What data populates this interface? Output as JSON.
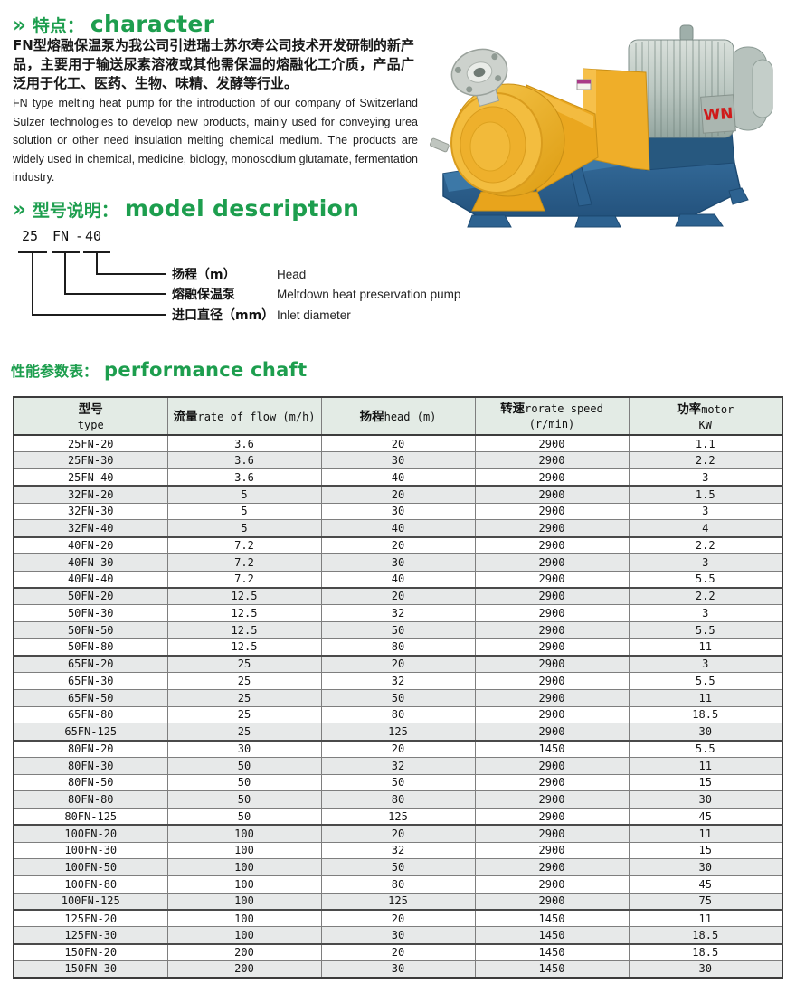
{
  "colors": {
    "heading_green": "#1d9e4e",
    "table_header_bg": "#e3ebe5",
    "stripe_bg": "#e7e9e9",
    "base_blue": "#2d6290",
    "pump_yellow": "#efae29",
    "motor_gray": "#b9c4be",
    "wn_red": "#cf1b1b"
  },
  "character_section": {
    "marker": "»",
    "title_zh": "特点：",
    "title_en": "character",
    "paragraph_zh": "FN型熔融保温泵为我公司引进瑞士苏尔寿公司技术开发研制的新产品，主要用于输送尿素溶液或其他需保温的熔融化工介质，产品广泛用于化工、医药、生物、味精、发酵等行业。",
    "paragraph_en": "FN type melting heat pump for the introduction of our company of Switzerland Sulzer technologies to develop new products, mainly used for conveying urea solution or other need insulation melting chemical medium. The products are widely used in chemical, medicine, biology, monosodium glutamate, fermentation industry."
  },
  "pump_photo": {
    "motor_label": "WN"
  },
  "model_section": {
    "marker": "»",
    "title_zh": "型号说明：",
    "title_en": "model description",
    "code_parts": [
      "25",
      "FN",
      "-",
      "40"
    ],
    "legend": [
      {
        "zh": "扬程（m）",
        "en": "Head"
      },
      {
        "zh": "熔融保温泵",
        "en": "Meltdown heat preservation pump"
      },
      {
        "zh": "进口直径（mm）",
        "en": "Inlet diameter"
      }
    ]
  },
  "performance_section": {
    "title_zh": "性能参数表：",
    "title_en": "performance chaft",
    "table": {
      "headers": [
        {
          "zh": "型号",
          "en": "",
          "line2": "type"
        },
        {
          "zh": "流量",
          "en": "rate of flow (m/h)",
          "line2": ""
        },
        {
          "zh": "扬程",
          "en": "head (m)",
          "line2": ""
        },
        {
          "zh": "转速",
          "en": "rorate speed (r/min)",
          "line2": ""
        },
        {
          "zh": "功率",
          "en": "motor",
          "line2": "KW"
        }
      ],
      "rows": [
        [
          "25FN-20",
          "3.6",
          "20",
          "2900",
          "1.1"
        ],
        [
          "25FN-30",
          "3.6",
          "30",
          "2900",
          "2.2"
        ],
        [
          "25FN-40",
          "3.6",
          "40",
          "2900",
          "3"
        ],
        [
          "32FN-20",
          "5",
          "20",
          "2900",
          "1.5"
        ],
        [
          "32FN-30",
          "5",
          "30",
          "2900",
          "3"
        ],
        [
          "32FN-40",
          "5",
          "40",
          "2900",
          "4"
        ],
        [
          "40FN-20",
          "7.2",
          "20",
          "2900",
          "2.2"
        ],
        [
          "40FN-30",
          "7.2",
          "30",
          "2900",
          "3"
        ],
        [
          "40FN-40",
          "7.2",
          "40",
          "2900",
          "5.5"
        ],
        [
          "50FN-20",
          "12.5",
          "20",
          "2900",
          "2.2"
        ],
        [
          "50FN-30",
          "12.5",
          "32",
          "2900",
          "3"
        ],
        [
          "50FN-50",
          "12.5",
          "50",
          "2900",
          "5.5"
        ],
        [
          "50FN-80",
          "12.5",
          "80",
          "2900",
          "11"
        ],
        [
          "65FN-20",
          "25",
          "20",
          "2900",
          "3"
        ],
        [
          "65FN-30",
          "25",
          "32",
          "2900",
          "5.5"
        ],
        [
          "65FN-50",
          "25",
          "50",
          "2900",
          "11"
        ],
        [
          "65FN-80",
          "25",
          "80",
          "2900",
          "18.5"
        ],
        [
          "65FN-125",
          "25",
          "125",
          "2900",
          "30"
        ],
        [
          "80FN-20",
          "30",
          "20",
          "1450",
          "5.5"
        ],
        [
          "80FN-30",
          "50",
          "32",
          "2900",
          "11"
        ],
        [
          "80FN-50",
          "50",
          "50",
          "2900",
          "15"
        ],
        [
          "80FN-80",
          "50",
          "80",
          "2900",
          "30"
        ],
        [
          "80FN-125",
          "50",
          "125",
          "2900",
          "45"
        ],
        [
          "100FN-20",
          "100",
          "20",
          "2900",
          "11"
        ],
        [
          "100FN-30",
          "100",
          "32",
          "2900",
          "15"
        ],
        [
          "100FN-50",
          "100",
          "50",
          "2900",
          "30"
        ],
        [
          "100FN-80",
          "100",
          "80",
          "2900",
          "45"
        ],
        [
          "100FN-125",
          "100",
          "125",
          "2900",
          "75"
        ],
        [
          "125FN-20",
          "100",
          "20",
          "1450",
          "11"
        ],
        [
          "125FN-30",
          "100",
          "30",
          "1450",
          "18.5"
        ],
        [
          "150FN-20",
          "200",
          "20",
          "1450",
          "18.5"
        ],
        [
          "150FN-30",
          "200",
          "30",
          "1450",
          "30"
        ]
      ]
    }
  }
}
